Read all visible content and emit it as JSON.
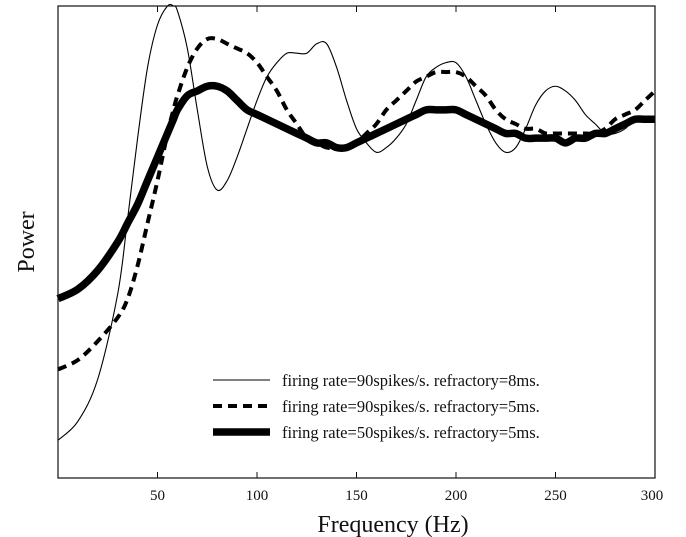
{
  "chart_data": {
    "type": "line",
    "title": "",
    "xlabel": "Frequency (Hz)",
    "ylabel": "Power",
    "xlim": [
      0,
      300
    ],
    "ylim": [
      0,
      100
    ],
    "y_ticks_shown": false,
    "x_ticks": [
      50,
      100,
      150,
      200,
      250,
      300
    ],
    "grid": false,
    "legend_position": "bottom-right",
    "x": [
      0,
      10,
      20,
      30,
      35,
      40,
      45,
      50,
      55,
      58,
      60,
      65,
      70,
      75,
      80,
      85,
      90,
      95,
      100,
      105,
      110,
      115,
      120,
      125,
      130,
      135,
      140,
      145,
      150,
      155,
      160,
      165,
      170,
      175,
      180,
      185,
      190,
      195,
      200,
      205,
      210,
      215,
      220,
      225,
      230,
      235,
      240,
      245,
      250,
      255,
      260,
      265,
      270,
      275,
      280,
      285,
      290,
      295,
      300
    ],
    "series": [
      {
        "name": "firing rate=90spikes/s. refractory=8ms.",
        "line_style": "thin-solid",
        "values": [
          8,
          12,
          21,
          39,
          55,
          72,
          87,
          96,
          100,
          100,
          99,
          91,
          78,
          66,
          61,
          63,
          68,
          74,
          80,
          85,
          88,
          90,
          90,
          90,
          92,
          92,
          87,
          80,
          74,
          71,
          69,
          70,
          72,
          75,
          80,
          85,
          87,
          88,
          88,
          85,
          80,
          75,
          71,
          69,
          70,
          74,
          79,
          82,
          83,
          82,
          80,
          77,
          75,
          73,
          73,
          74,
          76,
          76,
          76
        ]
      },
      {
        "name": "firing rate=90spikes/s. refractory=5ms.",
        "line_style": "thick-dashed",
        "values": [
          23,
          25,
          29,
          34,
          38,
          45,
          54,
          63,
          73,
          78,
          81,
          87,
          91,
          93,
          93,
          92,
          91,
          90,
          88,
          85,
          82,
          78,
          75,
          72,
          71,
          70,
          70,
          70,
          71,
          73,
          75,
          78,
          80,
          82,
          84,
          85,
          86,
          86,
          86,
          85,
          83,
          81,
          78,
          76,
          75,
          74,
          74,
          73,
          73,
          73,
          73,
          73,
          73,
          74,
          76,
          77,
          78,
          80,
          82
        ]
      },
      {
        "name": "firing rate=50spikes/s. refractory=5ms.",
        "line_style": "heavy-solid",
        "values": [
          38,
          40,
          44,
          50,
          54,
          58,
          63,
          68,
          73,
          76,
          78,
          81,
          82,
          83,
          83,
          82,
          80,
          78,
          77,
          76,
          75,
          74,
          73,
          72,
          71,
          71,
          70,
          70,
          71,
          72,
          73,
          74,
          75,
          76,
          77,
          78,
          78,
          78,
          78,
          77,
          76,
          75,
          74,
          73,
          73,
          72,
          72,
          72,
          72,
          71,
          72,
          72,
          73,
          73,
          74,
          75,
          76,
          76,
          76
        ]
      }
    ]
  }
}
